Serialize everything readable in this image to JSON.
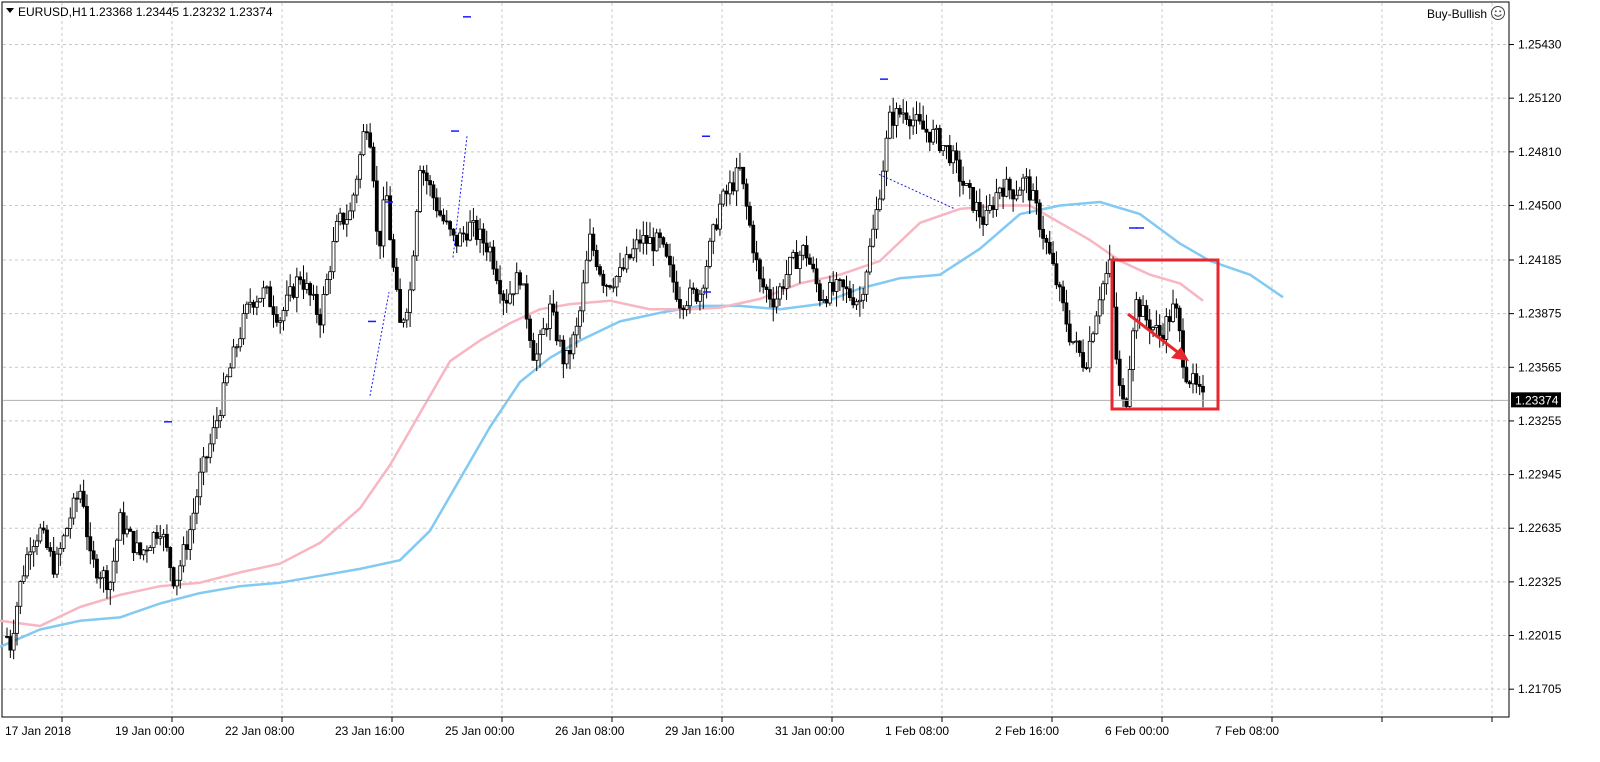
{
  "header": {
    "symbol_label": "EURUSD,H1",
    "ohlc_label": "1.23368 1.23445 1.23232 1.23374",
    "brand_label": "Buy-Bullish",
    "brand_icon": "smiley-icon"
  },
  "colors": {
    "background": "#ffffff",
    "grid": "#c8c8c8",
    "candle": "#000000",
    "ma_fast": "#f7b6c2",
    "ma_slow": "#82caf2",
    "annotation": "#e8262e",
    "marker": "#1a1aff",
    "price_tag_bg": "#000000",
    "price_tag_text": "#ffffff"
  },
  "chart_data": {
    "type": "candlestick",
    "symbol": "EURUSD",
    "timeframe": "H1",
    "current_price": 1.23374,
    "current_price_label": "1.23374",
    "ylim": [
      1.2155,
      1.2567
    ],
    "y_ticks": [
      1.2543,
      1.2512,
      1.2481,
      1.245,
      1.24185,
      1.23875,
      1.23565,
      1.23255,
      1.22945,
      1.22635,
      1.22325,
      1.22015,
      1.21705
    ],
    "y_tick_labels": [
      "1.25430",
      "1.25120",
      "1.24810",
      "1.24500",
      "1.24185",
      "1.23875",
      "1.23565",
      "1.23255",
      "1.22945",
      "1.22635",
      "1.22325",
      "1.22015",
      "1.21705"
    ],
    "x_labels": [
      "17 Jan 2018",
      "19 Jan 00:00",
      "22 Jan 08:00",
      "23 Jan 16:00",
      "25 Jan 00:00",
      "26 Jan 08:00",
      "29 Jan 16:00",
      "31 Jan 00:00",
      "1 Feb 08:00",
      "2 Feb 16:00",
      "6 Feb 00:00",
      "7 Feb 08:00"
    ],
    "bar_count": 360,
    "price_path": [
      [
        0,
        1.2215
      ],
      [
        10,
        1.2195
      ],
      [
        20,
        1.223
      ],
      [
        30,
        1.2255
      ],
      [
        40,
        1.2262
      ],
      [
        55,
        1.224
      ],
      [
        70,
        1.227
      ],
      [
        82,
        1.2288
      ],
      [
        90,
        1.2245
      ],
      [
        110,
        1.2232
      ],
      [
        120,
        1.2268
      ],
      [
        140,
        1.2248
      ],
      [
        160,
        1.2265
      ],
      [
        175,
        1.2232
      ],
      [
        190,
        1.2262
      ],
      [
        200,
        1.2292
      ],
      [
        212,
        1.2315
      ],
      [
        225,
        1.2345
      ],
      [
        238,
        1.2372
      ],
      [
        250,
        1.2395
      ],
      [
        265,
        1.24
      ],
      [
        280,
        1.2385
      ],
      [
        300,
        1.241
      ],
      [
        320,
        1.2385
      ],
      [
        338,
        1.244
      ],
      [
        350,
        1.2445
      ],
      [
        360,
        1.2478
      ],
      [
        366,
        1.25
      ],
      [
        372,
        1.2485
      ],
      [
        378,
        1.242
      ],
      [
        386,
        1.246
      ],
      [
        392,
        1.242
      ],
      [
        400,
        1.238
      ],
      [
        410,
        1.24
      ],
      [
        420,
        1.2475
      ],
      [
        440,
        1.2445
      ],
      [
        455,
        1.2428
      ],
      [
        470,
        1.2438
      ],
      [
        490,
        1.2425
      ],
      [
        505,
        1.2395
      ],
      [
        520,
        1.241
      ],
      [
        535,
        1.236
      ],
      [
        550,
        1.239
      ],
      [
        565,
        1.2358
      ],
      [
        578,
        1.238
      ],
      [
        590,
        1.243
      ],
      [
        605,
        1.2405
      ],
      [
        620,
        1.241
      ],
      [
        640,
        1.243
      ],
      [
        660,
        1.2428
      ],
      [
        680,
        1.2395
      ],
      [
        700,
        1.24
      ],
      [
        720,
        1.245
      ],
      [
        740,
        1.247
      ],
      [
        760,
        1.2405
      ],
      [
        775,
        1.2395
      ],
      [
        790,
        1.2415
      ],
      [
        805,
        1.2425
      ],
      [
        820,
        1.2398
      ],
      [
        840,
        1.2402
      ],
      [
        860,
        1.2395
      ],
      [
        875,
        1.244
      ],
      [
        890,
        1.25
      ],
      [
        905,
        1.2505
      ],
      [
        920,
        1.2495
      ],
      [
        935,
        1.249
      ],
      [
        950,
        1.248
      ],
      [
        965,
        1.246
      ],
      [
        985,
        1.244
      ],
      [
        1000,
        1.2462
      ],
      [
        1015,
        1.2458
      ],
      [
        1025,
        1.2465
      ],
      [
        1035,
        1.245
      ],
      [
        1050,
        1.242
      ],
      [
        1070,
        1.2375
      ],
      [
        1085,
        1.2358
      ],
      [
        1100,
        1.24
      ],
      [
        1110,
        1.2415
      ],
      [
        1118,
        1.2348
      ],
      [
        1125,
        1.233
      ],
      [
        1135,
        1.2395
      ],
      [
        1145,
        1.2385
      ],
      [
        1160,
        1.2375
      ],
      [
        1175,
        1.2392
      ],
      [
        1185,
        1.2355
      ],
      [
        1195,
        1.2345
      ],
      [
        1203,
        1.2337
      ]
    ],
    "ma_fast_path": [
      [
        0,
        1.221
      ],
      [
        40,
        1.2207
      ],
      [
        80,
        1.2218
      ],
      [
        120,
        1.2225
      ],
      [
        160,
        1.223
      ],
      [
        200,
        1.2232
      ],
      [
        240,
        1.2238
      ],
      [
        280,
        1.2243
      ],
      [
        320,
        1.2255
      ],
      [
        360,
        1.2275
      ],
      [
        390,
        1.23
      ],
      [
        420,
        1.233
      ],
      [
        450,
        1.236
      ],
      [
        480,
        1.2372
      ],
      [
        510,
        1.2382
      ],
      [
        540,
        1.239
      ],
      [
        570,
        1.2393
      ],
      [
        610,
        1.2395
      ],
      [
        650,
        1.239
      ],
      [
        690,
        1.239
      ],
      [
        720,
        1.2391
      ],
      [
        760,
        1.2396
      ],
      [
        800,
        1.2405
      ],
      [
        840,
        1.241
      ],
      [
        880,
        1.2418
      ],
      [
        920,
        1.244
      ],
      [
        960,
        1.2448
      ],
      [
        1000,
        1.245
      ],
      [
        1030,
        1.245
      ],
      [
        1060,
        1.244
      ],
      [
        1090,
        1.243
      ],
      [
        1120,
        1.2418
      ],
      [
        1150,
        1.241
      ],
      [
        1180,
        1.2405
      ],
      [
        1203,
        1.2395
      ]
    ],
    "ma_slow_path": [
      [
        0,
        1.2195
      ],
      [
        40,
        1.2205
      ],
      [
        80,
        1.221
      ],
      [
        120,
        1.2212
      ],
      [
        160,
        1.222
      ],
      [
        200,
        1.2226
      ],
      [
        240,
        1.223
      ],
      [
        280,
        1.2232
      ],
      [
        320,
        1.2236
      ],
      [
        360,
        1.224
      ],
      [
        400,
        1.2245
      ],
      [
        430,
        1.2262
      ],
      [
        460,
        1.2292
      ],
      [
        490,
        1.2322
      ],
      [
        520,
        1.2348
      ],
      [
        550,
        1.2362
      ],
      [
        580,
        1.2372
      ],
      [
        620,
        1.2383
      ],
      [
        660,
        1.2388
      ],
      [
        700,
        1.2392
      ],
      [
        740,
        1.2392
      ],
      [
        780,
        1.239
      ],
      [
        820,
        1.2393
      ],
      [
        860,
        1.2402
      ],
      [
        900,
        1.2408
      ],
      [
        940,
        1.241
      ],
      [
        980,
        1.2425
      ],
      [
        1020,
        1.2445
      ],
      [
        1060,
        1.245
      ],
      [
        1100,
        1.2452
      ],
      [
        1140,
        1.2445
      ],
      [
        1180,
        1.2428
      ],
      [
        1210,
        1.2418
      ],
      [
        1250,
        1.241
      ],
      [
        1283,
        1.2397
      ]
    ]
  }
}
